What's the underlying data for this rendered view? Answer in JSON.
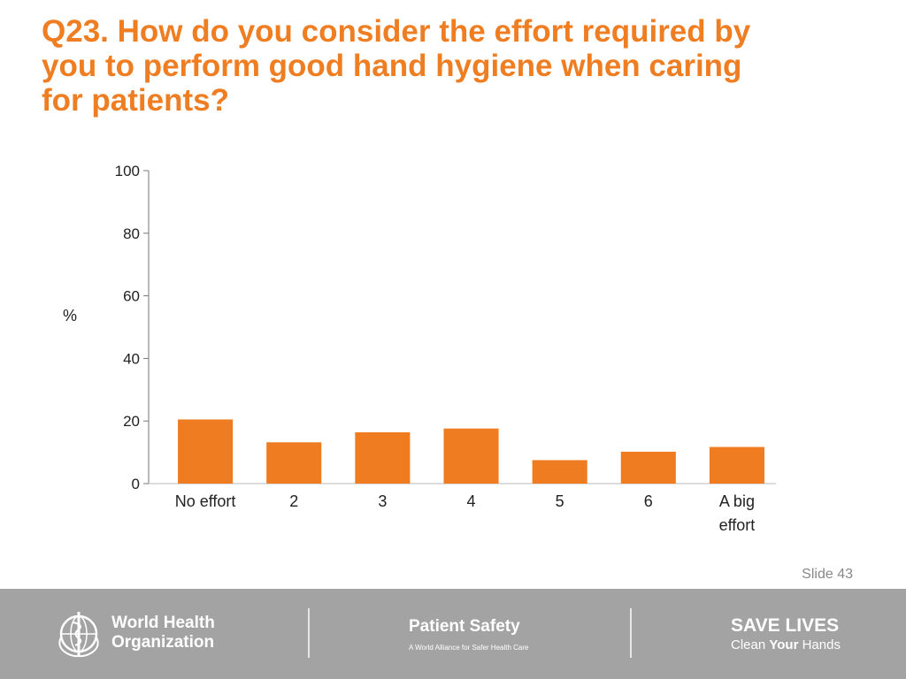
{
  "title_lines": [
    "Q23. How do you consider the effort required by",
    "you to perform good hand hygiene when caring",
    "for patients?"
  ],
  "slide_number": "Slide 43",
  "colors": {
    "title": "#ef7d22",
    "bar": "#f07c22",
    "footer_bg": "#a3a3a3"
  },
  "chart_data": {
    "type": "bar",
    "categories": [
      "No effort",
      "2",
      "3",
      "4",
      "5",
      "6",
      "A big effort"
    ],
    "category_lines": [
      [
        "No effort"
      ],
      [
        "2"
      ],
      [
        "3"
      ],
      [
        "4"
      ],
      [
        "5"
      ],
      [
        "6"
      ],
      [
        "A big",
        "effort"
      ]
    ],
    "values": [
      20.5,
      13.2,
      16.4,
      17.6,
      7.5,
      10.2,
      11.7
    ],
    "ylabel": "%",
    "ylim": [
      0,
      100
    ],
    "yticks": [
      0,
      20,
      40,
      60,
      80,
      100
    ],
    "grid": false,
    "legend": "none"
  },
  "footer": {
    "who_line1": "World Health",
    "who_line2": "Organization",
    "who_icon": "who-emblem-icon",
    "ps_title": "Patient Safety",
    "ps_subtitle": "A World Alliance for Safer Health Care",
    "sl_title": "SAVE LIVES",
    "sl_sub_pre": "Clean ",
    "sl_sub_bold": "Your",
    "sl_sub_post": " Hands"
  }
}
